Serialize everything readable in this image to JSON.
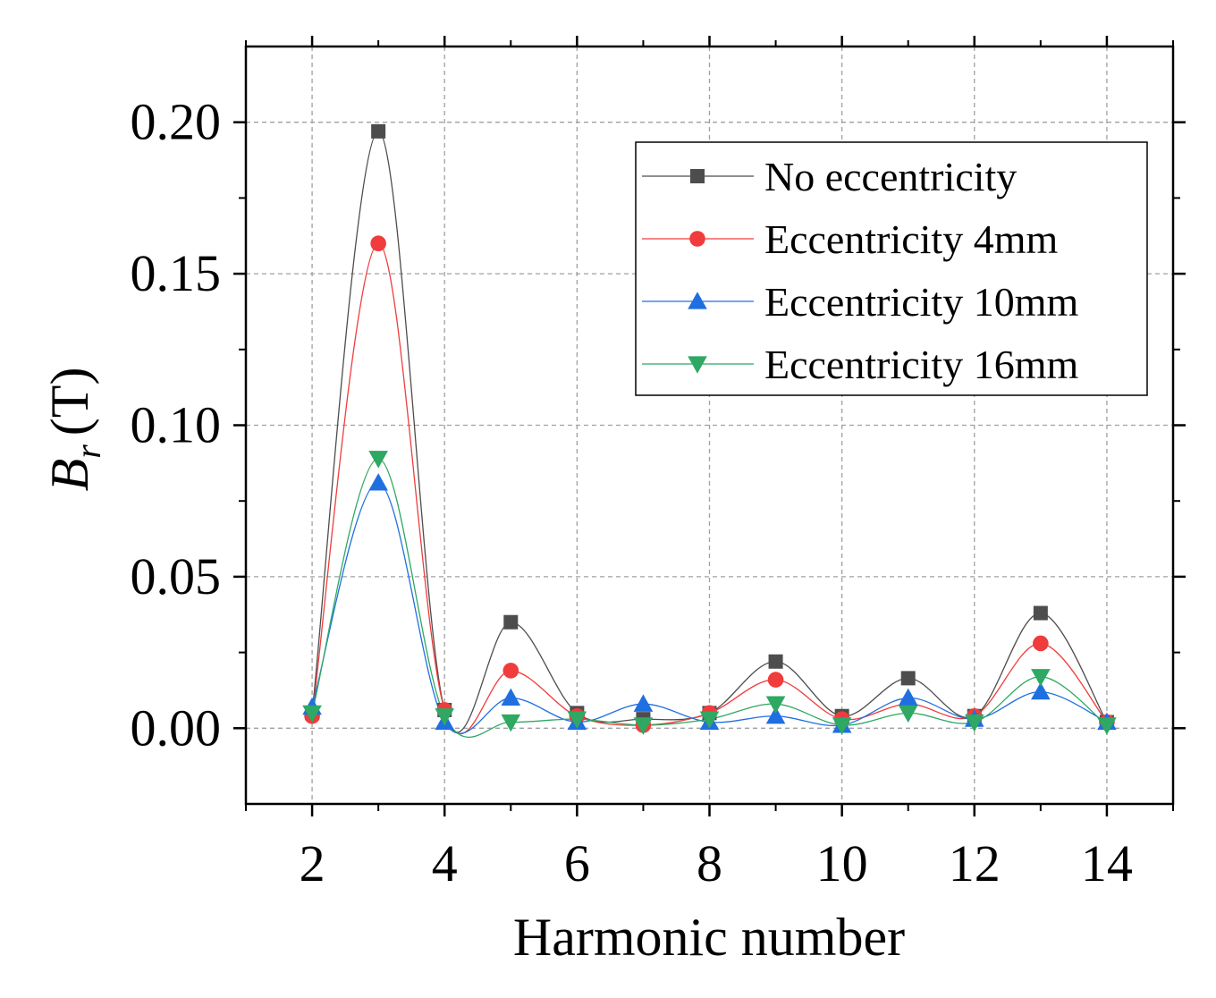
{
  "chart_data": {
    "type": "line",
    "title": "",
    "xlabel": "Harmonic number",
    "ylabel_symbol": "B",
    "ylabel_subscript": "r",
    "ylabel_unit": "(T)",
    "xlim": [
      1,
      15
    ],
    "ylim": [
      -0.025,
      0.225
    ],
    "xticks": [
      2,
      4,
      6,
      8,
      10,
      12,
      14
    ],
    "xtick_labels": [
      "2",
      "4",
      "6",
      "8",
      "10",
      "12",
      "14"
    ],
    "yticks": [
      0.0,
      0.05,
      0.1,
      0.15,
      0.2
    ],
    "ytick_labels": [
      "0.00",
      "0.05",
      "0.10",
      "0.15",
      "0.20"
    ],
    "grid": true,
    "legend_position": "top-right",
    "x": [
      2,
      3,
      4,
      5,
      6,
      7,
      8,
      9,
      10,
      11,
      12,
      13,
      14
    ],
    "series": [
      {
        "name": "No eccentricity",
        "marker": "square",
        "color": "#4d4d4d",
        "values": [
          0.005,
          0.197,
          0.006,
          0.035,
          0.005,
          0.003,
          0.005,
          0.022,
          0.004,
          0.0165,
          0.004,
          0.038,
          0.002
        ]
      },
      {
        "name": "Eccentricity 4mm",
        "marker": "circle",
        "color": "#f03c3c",
        "values": [
          0.004,
          0.16,
          0.006,
          0.019,
          0.004,
          0.001,
          0.005,
          0.016,
          0.003,
          0.008,
          0.004,
          0.028,
          0.002
        ]
      },
      {
        "name": "Eccentricity 10mm",
        "marker": "triangle-up",
        "color": "#1f6fe0",
        "values": [
          0.007,
          0.081,
          0.002,
          0.01,
          0.002,
          0.008,
          0.002,
          0.004,
          0.001,
          0.01,
          0.003,
          0.012,
          0.002
        ]
      },
      {
        "name": "Eccentricity 16mm",
        "marker": "triangle-down",
        "color": "#2ea862",
        "values": [
          0.005,
          0.089,
          0.004,
          0.002,
          0.003,
          0.001,
          0.003,
          0.008,
          0.001,
          0.005,
          0.002,
          0.017,
          0.001
        ]
      }
    ]
  }
}
